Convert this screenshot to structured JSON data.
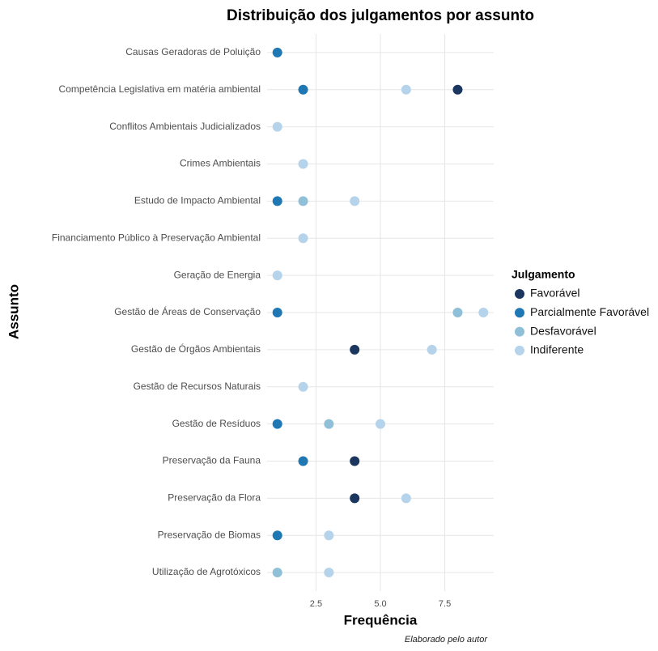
{
  "chart_data": {
    "type": "dot",
    "title": "Distribuição dos julgamentos por assunto",
    "x_label": "Frequência",
    "y_label": "Assunto",
    "caption": "Elaborado pelo autor",
    "legend_title": "Julgamento",
    "legend": "right",
    "grid": true,
    "categories": [
      "Causas Geradoras de Poluição",
      "Competência Legislativa em matéria ambiental",
      "Conflitos Ambientais Judicializados",
      "Crimes Ambientais",
      "Estudo de Impacto Ambiental",
      "Financiamento Público à Preservação Ambiental",
      "Geração de Energia",
      "Gestão de Áreas de Conservação",
      "Gestão de Órgãos Ambientais",
      "Gestão de Recursos Naturais",
      "Gestão de Resíduos",
      "Preservação da Fauna",
      "Preservação da Flora",
      "Preservação de Biomas",
      "Utilização de Agrotóxicos"
    ],
    "series": [
      {
        "name": "Favorável",
        "color": "#1b365f",
        "values": [
          null,
          8,
          null,
          null,
          null,
          null,
          null,
          null,
          4,
          null,
          null,
          4,
          4,
          null,
          null
        ]
      },
      {
        "name": "Parcialmente Favorável",
        "color": "#1f77b4",
        "values": [
          1,
          2,
          null,
          null,
          1,
          null,
          null,
          1,
          null,
          null,
          1,
          2,
          null,
          1,
          null
        ]
      },
      {
        "name": "Desfavorável",
        "color": "#8fc0d8",
        "values": [
          null,
          null,
          null,
          null,
          2,
          null,
          null,
          8,
          null,
          null,
          3,
          null,
          null,
          null,
          1
        ]
      },
      {
        "name": "Indiferente",
        "color": "#b5d3ea",
        "values": [
          null,
          6,
          1,
          2,
          4,
          2,
          1,
          9,
          7,
          2,
          5,
          null,
          6,
          3,
          3
        ]
      }
    ],
    "xlim": [
      0.6,
      9.4
    ],
    "xticks": [
      2.5,
      {
        "value": 5,
        "label": "5.0"
      },
      {
        "value": 7.5,
        "label": "7.5"
      }
    ]
  }
}
